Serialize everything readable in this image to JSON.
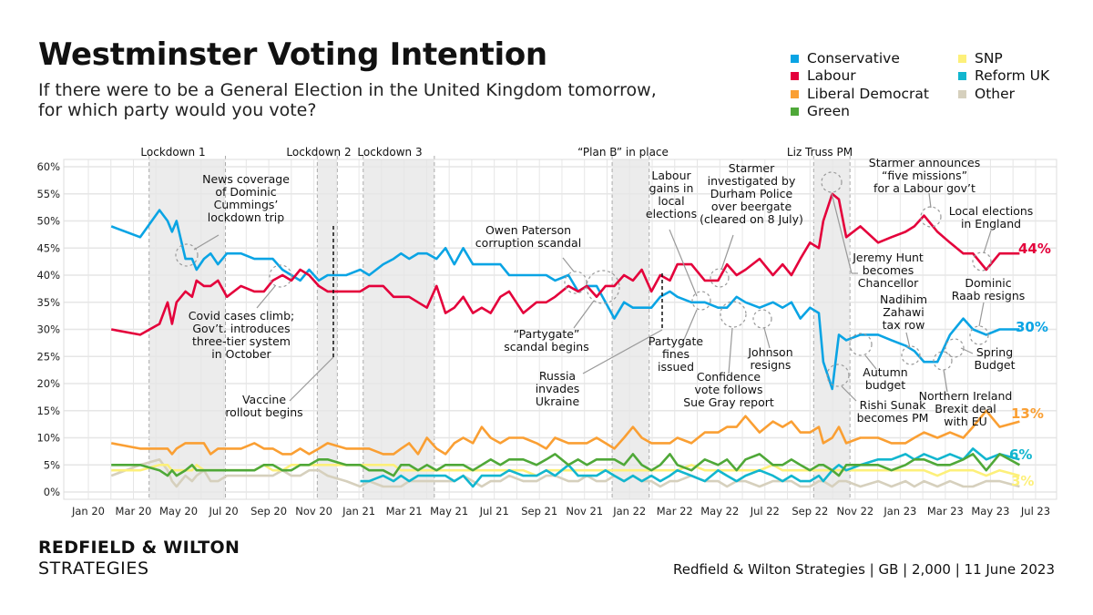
{
  "title": "Westminster Voting Intention",
  "subtitle": "If there were to be a General Election in the United Kingdom tomorrow,\nfor which party would you vote?",
  "legend": [
    {
      "name": "Conservative",
      "color": "#0aa4e4"
    },
    {
      "name": "Labour",
      "color": "#e4003b"
    },
    {
      "name": "Liberal Democrat",
      "color": "#fa9f33"
    },
    {
      "name": "Green",
      "color": "#4fa838"
    },
    {
      "name": "SNP",
      "color": "#fdf07a"
    },
    {
      "name": "Reform UK",
      "color": "#12b6cf"
    },
    {
      "name": "Other",
      "color": "#d6d0bd"
    }
  ],
  "brand": {
    "line1": "REDFIELD & WILTON",
    "line2": "STRATEGIES"
  },
  "source": "Redfield & Wilton Strategies | GB | 2,000 | 11 June 2023",
  "regions": [
    {
      "label": "Lockdown 1",
      "start": "2020-03-23",
      "end": "2020-07-04"
    },
    {
      "label": "Lockdown 2",
      "start": "2020-11-05",
      "end": "2020-12-02"
    },
    {
      "label": "Lockdown 3",
      "start": "2021-01-06",
      "end": "2021-04-12"
    },
    {
      "label": "“Plan B” in place",
      "start": "2021-12-08",
      "end": "2022-01-27"
    },
    {
      "label": "Liz Truss PM",
      "start": "2022-09-06",
      "end": "2022-10-25"
    }
  ],
  "annotations": [
    "News coverage\nof Dominic\nCummings’\nlockdown trip",
    "Covid cases climb;\nGov’t. introduces\nthree-tier system\nin October",
    "Vaccine\nrollout begins",
    "Owen Paterson\ncorruption scandal",
    "“Partygate”\nscandal begins",
    "Russia\ninvades\nUkraine",
    "Labour\ngains in\nlocal\nelections",
    "Starmer\ninvestigated by\nDurham Police\nover beergate\n(cleared on 8 July)",
    "Partygate\nfines\nissued",
    "Confidence\nvote follows\nSue Gray report",
    "Johnson\nresigns",
    "Starmer announces\n“five missions”\nfor a Labour gov’t",
    "Local elections\nin England",
    "Jeremy Hunt\nbecomes\nChancellor",
    "Dominic\nRaab resigns",
    "Nadihim\nZahawi\ntax row",
    "Autumn\nbudget",
    "Rishi Sunak\nbecomes PM",
    "Spring\nBudget",
    "Northern Ireland\nBrexit deal\nwith EU"
  ],
  "chart_data": {
    "type": "line",
    "title": "Westminster Voting Intention",
    "ylim": [
      0,
      60
    ],
    "yticks": [
      "0%",
      "5%",
      "10%",
      "15%",
      "20%",
      "25%",
      "30%",
      "35%",
      "40%",
      "45%",
      "50%",
      "55%",
      "60%"
    ],
    "xticks": [
      "Jan 20",
      "Mar 20",
      "May 20",
      "Jul 20",
      "Sep 20",
      "Nov 20",
      "Jan 21",
      "Mar 21",
      "May 21",
      "Jul 21",
      "Sep 21",
      "Nov 21",
      "Jan 22",
      "Mar 22",
      "May 22",
      "Jul 22",
      "Sep 22",
      "Nov 22",
      "Jan 23",
      "Mar 23",
      "May 23",
      "Jul 23"
    ],
    "xlim": [
      "2020-01-01",
      "2023-07-15"
    ],
    "grid": true,
    "legend_position": "top-right",
    "end_labels": [
      {
        "series": "Labour",
        "text": "44%"
      },
      {
        "series": "Conservative",
        "text": "30%"
      },
      {
        "series": "Liberal Democrat",
        "text": "13%"
      },
      {
        "series": "Reform UK",
        "text": "6%"
      },
      {
        "series": "SNP",
        "text": "3%"
      }
    ],
    "x": [
      "2020-02-01",
      "2020-03-11",
      "2020-04-06",
      "2020-04-17",
      "2020-04-23",
      "2020-04-29",
      "2020-05-11",
      "2020-05-20",
      "2020-05-26",
      "2020-06-05",
      "2020-06-14",
      "2020-06-24",
      "2020-07-06",
      "2020-07-25",
      "2020-08-12",
      "2020-08-25",
      "2020-09-06",
      "2020-09-19",
      "2020-10-01",
      "2020-10-13",
      "2020-10-25",
      "2020-11-07",
      "2020-11-19",
      "2020-12-14",
      "2021-01-02",
      "2021-01-14",
      "2021-02-02",
      "2021-02-16",
      "2021-02-26",
      "2021-03-09",
      "2021-03-21",
      "2021-04-02",
      "2021-04-15",
      "2021-04-27",
      "2021-05-09",
      "2021-05-21",
      "2021-06-03",
      "2021-06-15",
      "2021-06-27",
      "2021-07-10",
      "2021-07-22",
      "2021-08-10",
      "2021-08-28",
      "2021-09-10",
      "2021-09-22",
      "2021-10-10",
      "2021-10-23",
      "2021-11-04",
      "2021-11-17",
      "2021-11-29",
      "2021-12-11",
      "2021-12-24",
      "2022-01-05",
      "2022-01-17",
      "2022-01-30",
      "2022-02-11",
      "2022-02-24",
      "2022-03-06",
      "2022-03-25",
      "2022-04-12",
      "2022-04-30",
      "2022-05-12",
      "2022-05-25",
      "2022-06-06",
      "2022-06-25",
      "2022-07-13",
      "2022-07-26",
      "2022-08-07",
      "2022-08-19",
      "2022-09-01",
      "2022-09-13",
      "2022-09-19",
      "2022-10-01",
      "2022-10-10",
      "2022-10-20",
      "2022-11-08",
      "2022-12-02",
      "2022-12-20",
      "2023-01-08",
      "2023-01-20",
      "2023-02-02",
      "2023-02-20",
      "2023-03-09",
      "2023-03-27",
      "2023-04-09",
      "2023-04-27",
      "2023-05-15",
      "2023-06-11"
    ],
    "series": [
      {
        "name": "Other",
        "values": [
          3,
          5,
          6,
          4,
          2,
          1,
          3,
          2,
          3,
          4,
          2,
          2,
          3,
          3,
          3,
          3,
          3,
          4,
          3,
          3,
          4,
          4,
          3,
          2,
          1,
          2,
          1,
          1,
          1,
          2,
          2,
          2,
          2,
          2,
          2,
          3,
          2,
          1,
          2,
          2,
          3,
          2,
          2,
          3,
          3,
          2,
          2,
          3,
          2,
          2,
          3,
          2,
          3,
          2,
          2,
          1,
          2,
          2,
          3,
          2,
          2,
          1,
          2,
          2,
          1,
          2,
          2,
          2,
          1,
          1,
          2,
          2,
          1,
          2,
          2,
          1,
          2,
          1,
          2,
          1,
          2,
          1,
          2,
          1,
          1,
          2,
          2,
          1
        ]
      },
      {
        "name": "SNP",
        "values": [
          4,
          4,
          5,
          5,
          4,
          4,
          4,
          4,
          5,
          4,
          4,
          4,
          4,
          4,
          4,
          5,
          4,
          4,
          5,
          5,
          5,
          5,
          5,
          5,
          5,
          5,
          5,
          5,
          4,
          4,
          4,
          4,
          4,
          4,
          4,
          4,
          4,
          4,
          4,
          4,
          4,
          4,
          3,
          4,
          4,
          4,
          4,
          4,
          4,
          4,
          4,
          4,
          4,
          4,
          4,
          4,
          4,
          4,
          5,
          4,
          4,
          4,
          4,
          4,
          4,
          5,
          4,
          4,
          4,
          4,
          4,
          4,
          4,
          4,
          4,
          4,
          4,
          4,
          4,
          4,
          4,
          3,
          4,
          4,
          4,
          3,
          4,
          3
        ]
      },
      {
        "name": "Reform UK",
        "values": [
          null,
          null,
          null,
          null,
          null,
          null,
          null,
          null,
          null,
          null,
          null,
          null,
          null,
          null,
          null,
          null,
          null,
          null,
          null,
          null,
          null,
          null,
          null,
          null,
          2,
          2,
          3,
          2,
          3,
          2,
          3,
          3,
          3,
          3,
          2,
          3,
          1,
          3,
          3,
          3,
          4,
          3,
          3,
          4,
          3,
          5,
          3,
          3,
          3,
          4,
          3,
          2,
          3,
          2,
          3,
          2,
          3,
          4,
          3,
          2,
          4,
          3,
          2,
          3,
          4,
          3,
          2,
          3,
          2,
          2,
          3,
          2,
          4,
          5,
          4,
          5,
          6,
          6,
          7,
          6,
          7,
          6,
          7,
          6,
          8,
          6,
          7,
          6
        ]
      },
      {
        "name": "Green",
        "values": [
          5,
          5,
          4,
          3,
          4,
          3,
          4,
          5,
          4,
          4,
          4,
          4,
          4,
          4,
          4,
          5,
          5,
          4,
          4,
          5,
          5,
          6,
          6,
          5,
          5,
          4,
          4,
          3,
          5,
          5,
          4,
          5,
          4,
          5,
          5,
          5,
          4,
          5,
          6,
          5,
          6,
          6,
          5,
          6,
          7,
          5,
          6,
          5,
          6,
          6,
          6,
          5,
          7,
          5,
          4,
          5,
          7,
          5,
          4,
          6,
          5,
          6,
          4,
          6,
          7,
          5,
          5,
          6,
          5,
          4,
          5,
          5,
          4,
          3,
          5,
          5,
          5,
          4,
          5,
          6,
          6,
          5,
          5,
          6,
          7,
          4,
          7,
          5
        ]
      },
      {
        "name": "Liberal Democrat",
        "values": [
          9,
          8,
          8,
          8,
          7,
          8,
          9,
          9,
          9,
          9,
          7,
          8,
          8,
          8,
          9,
          8,
          8,
          7,
          7,
          8,
          7,
          8,
          9,
          8,
          8,
          8,
          7,
          7,
          8,
          9,
          7,
          10,
          8,
          7,
          9,
          10,
          9,
          12,
          10,
          9,
          10,
          10,
          9,
          8,
          10,
          9,
          9,
          9,
          10,
          9,
          8,
          10,
          12,
          10,
          9,
          9,
          9,
          10,
          9,
          11,
          11,
          12,
          12,
          14,
          11,
          13,
          12,
          13,
          11,
          11,
          12,
          9,
          10,
          12,
          9,
          10,
          10,
          9,
          9,
          10,
          11,
          10,
          11,
          10,
          12,
          15,
          12,
          13
        ]
      },
      {
        "name": "Conservative",
        "values": [
          49,
          47,
          52,
          50,
          48,
          50,
          43,
          43,
          41,
          43,
          44,
          42,
          44,
          44,
          43,
          43,
          43,
          41,
          40,
          39,
          41,
          39,
          40,
          40,
          41,
          40,
          42,
          43,
          44,
          43,
          44,
          44,
          43,
          45,
          42,
          45,
          42,
          42,
          42,
          42,
          40,
          40,
          40,
          40,
          39,
          40,
          37,
          38,
          38,
          35,
          32,
          35,
          34,
          34,
          34,
          36,
          37,
          36,
          35,
          35,
          34,
          34,
          36,
          35,
          34,
          35,
          34,
          35,
          32,
          34,
          33,
          24,
          19,
          29,
          28,
          29,
          29,
          28,
          27,
          26,
          24,
          24,
          29,
          32,
          30,
          29,
          30,
          30
        ]
      },
      {
        "name": "Labour",
        "values": [
          30,
          29,
          31,
          35,
          31,
          35,
          37,
          36,
          39,
          38,
          38,
          39,
          36,
          38,
          37,
          37,
          39,
          40,
          39,
          41,
          40,
          38,
          37,
          37,
          37,
          38,
          38,
          36,
          36,
          36,
          35,
          34,
          38,
          33,
          34,
          36,
          33,
          34,
          33,
          36,
          37,
          33,
          35,
          35,
          36,
          38,
          37,
          38,
          36,
          38,
          38,
          40,
          39,
          41,
          37,
          40,
          39,
          42,
          42,
          39,
          39,
          42,
          40,
          41,
          43,
          40,
          42,
          40,
          43,
          46,
          45,
          50,
          55,
          54,
          47,
          49,
          46,
          47,
          48,
          49,
          51,
          48,
          46,
          44,
          44,
          41,
          44,
          44
        ]
      }
    ]
  }
}
